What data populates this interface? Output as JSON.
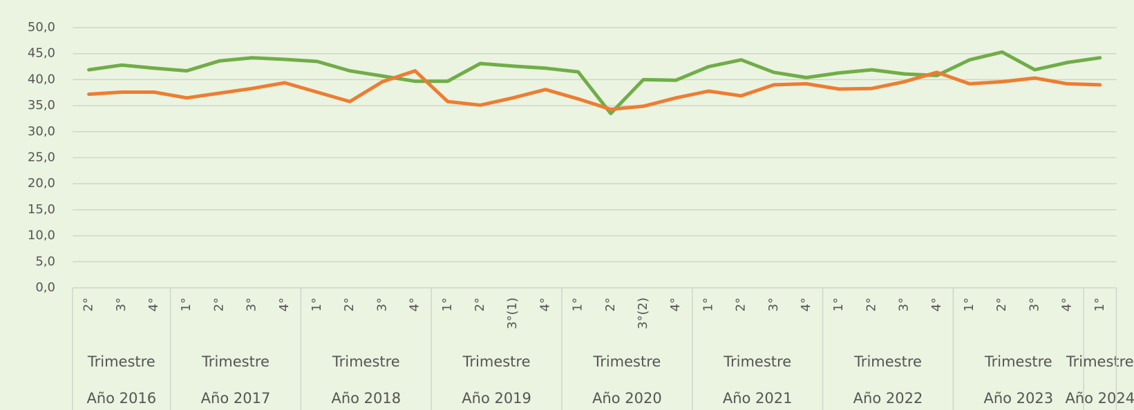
{
  "chart_data": {
    "type": "line",
    "groups": [
      {
        "label": "Año 2016",
        "sublabel": "Trimestre",
        "categories": [
          "2°",
          "3°",
          "4°"
        ]
      },
      {
        "label": "Año 2017",
        "sublabel": "Trimestre",
        "categories": [
          "1°",
          "2°",
          "3°",
          "4°"
        ]
      },
      {
        "label": "Año 2018",
        "sublabel": "Trimestre",
        "categories": [
          "1°",
          "2°",
          "3°",
          "4°"
        ]
      },
      {
        "label": "Año 2019",
        "sublabel": "Trimestre",
        "categories": [
          "1°",
          "2°",
          "3°(1)",
          "4°"
        ]
      },
      {
        "label": "Año 2020",
        "sublabel": "Trimestre",
        "categories": [
          "1°",
          "2°",
          "3°(2)",
          "4°"
        ]
      },
      {
        "label": "Año 2021",
        "sublabel": "Trimestre",
        "categories": [
          "1°",
          "2°",
          "3°",
          "4°"
        ]
      },
      {
        "label": "Año 2022",
        "sublabel": "Trimestre",
        "categories": [
          "1°",
          "2°",
          "3°",
          "4°"
        ]
      },
      {
        "label": "Año 2023",
        "sublabel": "Trimestre",
        "categories": [
          "1°",
          "2°",
          "3°",
          "4°"
        ]
      },
      {
        "label": "Año 2024",
        "sublabel": "Trimestre",
        "categories": [
          "1°"
        ]
      }
    ],
    "series": [
      {
        "color": "#70ad47",
        "values": [
          41.9,
          42.8,
          42.2,
          41.7,
          43.6,
          44.2,
          43.9,
          43.5,
          41.7,
          40.7,
          39.7,
          39.7,
          43.1,
          42.6,
          42.2,
          41.5,
          33.5,
          40.0,
          39.9,
          42.5,
          43.8,
          41.4,
          40.4,
          41.3,
          41.9,
          41.1,
          40.8,
          43.8,
          45.3,
          41.9,
          43.3,
          44.2
        ]
      },
      {
        "color": "#ed7d31",
        "values": [
          37.2,
          37.6,
          37.6,
          36.5,
          37.4,
          38.3,
          39.4,
          37.6,
          35.8,
          39.6,
          41.7,
          35.8,
          35.1,
          36.5,
          38.1,
          36.3,
          34.3,
          34.9,
          36.5,
          37.8,
          36.9,
          39.0,
          39.2,
          38.2,
          38.3,
          39.6,
          41.4,
          39.2,
          39.6,
          40.3,
          39.2,
          39.0
        ]
      }
    ],
    "ylim": [
      0,
      50
    ],
    "yticks": [
      {
        "value": 0,
        "label": "0,0"
      },
      {
        "value": 5,
        "label": "5,0"
      },
      {
        "value": 10,
        "label": "10,0"
      },
      {
        "value": 15,
        "label": "15,0"
      },
      {
        "value": 20,
        "label": "20,0"
      },
      {
        "value": 25,
        "label": "25,0"
      },
      {
        "value": 30,
        "label": "30,0"
      },
      {
        "value": 35,
        "label": "35,0"
      },
      {
        "value": 40,
        "label": "40,0"
      },
      {
        "value": 45,
        "label": "45,0"
      },
      {
        "value": 50,
        "label": "50,0"
      }
    ],
    "grid": true
  }
}
